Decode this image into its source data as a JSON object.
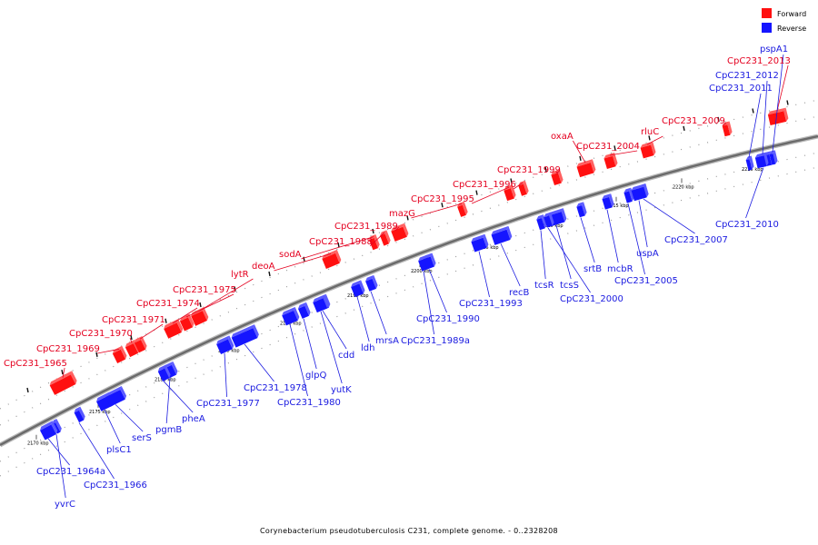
{
  "legend": {
    "forward": {
      "label": "Forward",
      "color": "#ff1010"
    },
    "reverse": {
      "label": "Reverse",
      "color": "#1515ff"
    }
  },
  "caption": "Corynebacterium pseudotuberculosis C231, complete genome. - 0..2328208",
  "scale_ticks": [
    "2170 kbp",
    "2175 kbp",
    "2180 kbp",
    "2185 kbp",
    "2190 kbp",
    "2195 kbp",
    "2200 kbp",
    "2205 kbp",
    "2210 kbp",
    "2215 kbp",
    "2220 kbp",
    "2225 kbp"
  ],
  "forward_genes": [
    "CpC231_1965",
    "CpC231_1969",
    "CpC231_1970",
    "CpC231_1971",
    "CpC231_1974",
    "CpC231_1975",
    "lytR",
    "deoA",
    "sodA",
    "CpC231_1988",
    "CpC231_1989",
    "mazG",
    "CpC231_1995",
    "CpC231_1996",
    "CpC231_1999",
    "oxaA",
    "CpC231_2004",
    "rluC",
    "CpC231_2009",
    "CpC231_2013"
  ],
  "reverse_genes": [
    "yvrC",
    "CpC231_1964a",
    "CpC231_1966",
    "plsC1",
    "serS",
    "pgmB",
    "pheA",
    "CpC231_1977",
    "CpC231_1978",
    "CpC231_1980",
    "glpQ",
    "yutK",
    "cdd",
    "ldh",
    "mrsA",
    "CpC231_1989a",
    "CpC231_1990",
    "CpC231_1993",
    "recB",
    "tcsR",
    "tcsS",
    "CpC231_2000",
    "srtB",
    "mcbR",
    "CpC231_2005",
    "uspA",
    "CpC231_2007",
    "CpC231_2010",
    "CpC231_2011",
    "CpC231_2012",
    "pspA1"
  ]
}
